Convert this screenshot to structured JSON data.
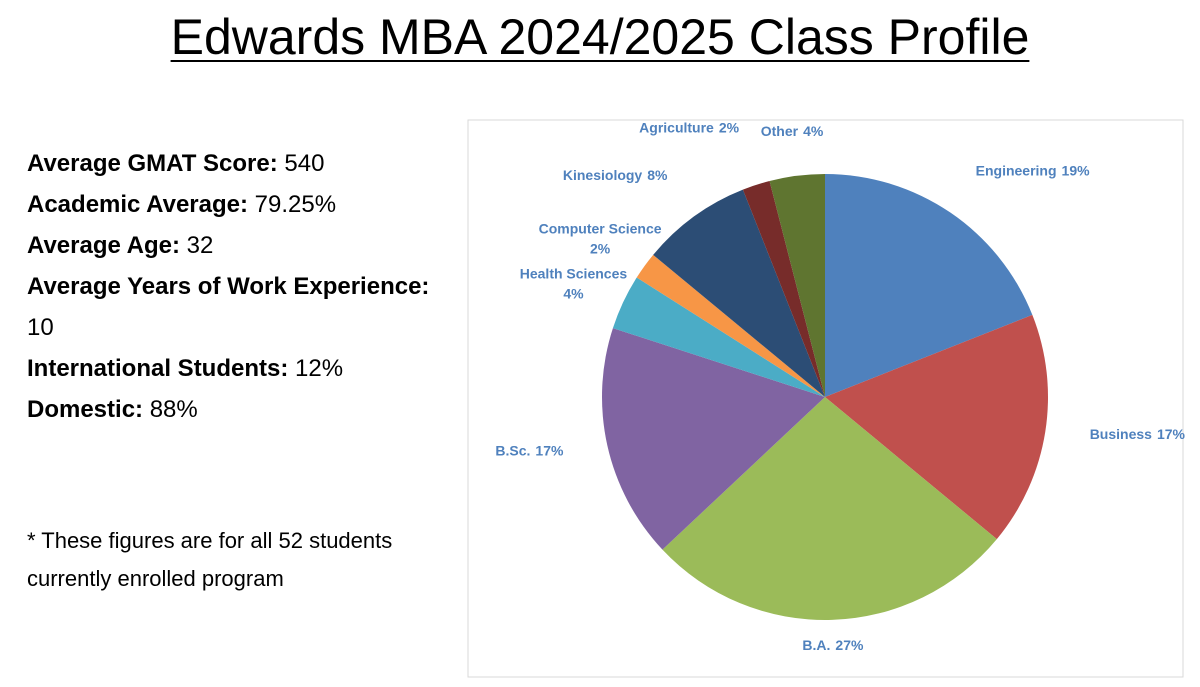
{
  "header": {
    "title": "Edwards MBA 2024/2025 Class Profile"
  },
  "stats": [
    {
      "label": "Average GMAT Score:",
      "value": "540"
    },
    {
      "label": "Academic Average:",
      "value": "79.25%"
    },
    {
      "label": "Average Age:",
      "value": "32"
    },
    {
      "label": "Average Years of Work Experience:",
      "value": "10"
    },
    {
      "label": "International Students:",
      "value": "12%"
    },
    {
      "label": "Domestic:",
      "value": "88%"
    }
  ],
  "footnote": "* These figures are for all 52 students currently enrolled program",
  "chart_data": {
    "type": "pie",
    "categories": [
      "Engineering",
      "Business",
      "B.A.",
      "B.Sc.",
      "Health Sciences",
      "Computer Science",
      "Kinesiology",
      "Agriculture",
      "Other"
    ],
    "values": [
      19,
      17,
      27,
      17,
      4,
      2,
      8,
      2,
      4
    ],
    "value_labels": [
      "19%",
      "17%",
      "27%",
      "17%",
      "4%",
      "2%",
      "8%",
      "2%",
      "4%"
    ],
    "colors": [
      "#4f81bd",
      "#c0504d",
      "#9bbb59",
      "#8064a2",
      "#4bacc6",
      "#f79646",
      "#2c4d75",
      "#772c2a",
      "#5f7530"
    ]
  }
}
